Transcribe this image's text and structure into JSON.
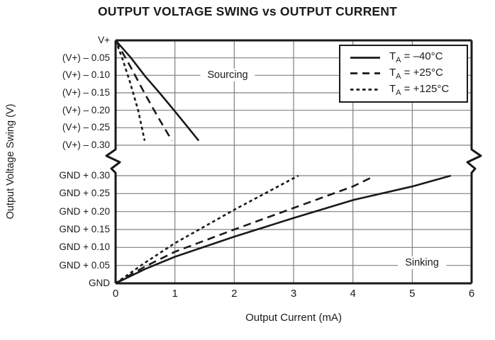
{
  "title": "OUTPUT VOLTAGE SWING vs OUTPUT CURRENT",
  "chart_data": {
    "type": "line",
    "title": "OUTPUT VOLTAGE SWING vs OUTPUT CURRENT",
    "xlabel": "Output Current (mA)",
    "ylabel": "Output Voltage Swing (V)",
    "xlim": [
      0,
      6
    ],
    "x_ticks": [
      "0",
      "1",
      "2",
      "3",
      "4",
      "5",
      "6"
    ],
    "grid": true,
    "axis_break": true,
    "colors": {
      "curve": "#1a1a1a",
      "grid": "#808080",
      "background": "#ffffff",
      "text": "#1a1a1a"
    },
    "panels": [
      {
        "name": "sourcing",
        "annotation": "Sourcing",
        "y_unit": "volts below V+",
        "y_step": 0.05,
        "y_tick_labels": [
          "V+",
          "(V+) – 0.05",
          "(V+) – 0.10",
          "(V+) – 0.15",
          "(V+) – 0.20",
          "(V+) – 0.25",
          "(V+) – 0.30"
        ],
        "series": [
          {
            "name": "TA = –40°C",
            "style": "solid",
            "points": [
              [
                0,
                0
              ],
              [
                0.25,
                0.048
              ],
              [
                0.5,
                0.103
              ],
              [
                0.75,
                0.152
              ],
              [
                1.0,
                0.203
              ],
              [
                1.2,
                0.245
              ],
              [
                1.4,
                0.287
              ]
            ]
          },
          {
            "name": "TA = +25°C",
            "style": "dashed",
            "points": [
              [
                0,
                0
              ],
              [
                0.25,
                0.075
              ],
              [
                0.5,
                0.155
              ],
              [
                0.7,
                0.215
              ],
              [
                0.82,
                0.25
              ],
              [
                0.95,
                0.287
              ]
            ]
          },
          {
            "name": "TA = +125°C",
            "style": "short-dash",
            "points": [
              [
                0,
                0
              ],
              [
                0.12,
                0.055
              ],
              [
                0.24,
                0.118
              ],
              [
                0.38,
                0.2
              ],
              [
                0.49,
                0.287
              ]
            ]
          }
        ]
      },
      {
        "name": "sinking",
        "annotation": "Sinking",
        "y_unit": "volts above GND",
        "y_step": 0.05,
        "y_tick_labels": [
          "GND + 0.30",
          "GND + 0.25",
          "GND + 0.20",
          "GND + 0.15",
          "GND + 0.10",
          "GND + 0.05",
          "GND"
        ],
        "series": [
          {
            "name": "TA = –40°C",
            "style": "solid",
            "points": [
              [
                0,
                0
              ],
              [
                0.5,
                0.04
              ],
              [
                1,
                0.074
              ],
              [
                2,
                0.13
              ],
              [
                3,
                0.182
              ],
              [
                4,
                0.232
              ],
              [
                5,
                0.27
              ],
              [
                5.65,
                0.3
              ]
            ]
          },
          {
            "name": "TA = +25°C",
            "style": "dashed",
            "points": [
              [
                0,
                0
              ],
              [
                0.5,
                0.047
              ],
              [
                1,
                0.088
              ],
              [
                2,
                0.15
              ],
              [
                3,
                0.21
              ],
              [
                4,
                0.27
              ],
              [
                4.35,
                0.298
              ]
            ]
          },
          {
            "name": "TA = +125°C",
            "style": "short-dash",
            "points": [
              [
                0,
                0
              ],
              [
                0.5,
                0.058
              ],
              [
                1,
                0.112
              ],
              [
                2,
                0.205
              ],
              [
                3,
                0.293
              ],
              [
                3.08,
                0.3
              ]
            ]
          }
        ]
      }
    ],
    "legend": {
      "position": "top-right",
      "items": [
        {
          "prefix": "T",
          "sub": "A",
          "rest": " = –40°C",
          "style": "solid"
        },
        {
          "prefix": "T",
          "sub": "A",
          "rest": " = +25°C",
          "style": "dashed"
        },
        {
          "prefix": "T",
          "sub": "A",
          "rest": " = +125°C",
          "style": "short-dash"
        }
      ]
    }
  }
}
